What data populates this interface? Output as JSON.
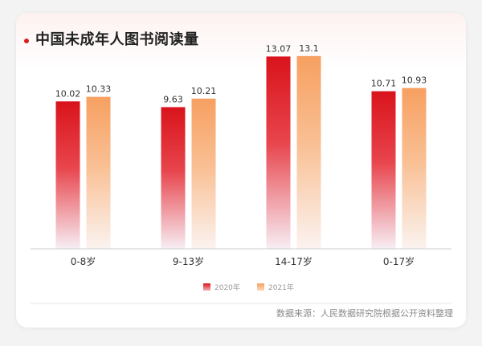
{
  "chart_data": {
    "type": "bar",
    "title": "中国未成年人图书阅读量",
    "categories": [
      "0-8岁",
      "9-13岁",
      "14-17岁",
      "0-17岁"
    ],
    "series": [
      {
        "name": "2020年",
        "values": [
          10.02,
          9.63,
          13.07,
          10.71
        ],
        "value_labels": [
          "10.02",
          "9.63",
          "13.07",
          "10.71"
        ],
        "color": "#d9131b"
      },
      {
        "name": "2021年",
        "values": [
          10.33,
          10.21,
          13.1,
          10.93
        ],
        "value_labels": [
          "10.33",
          "10.21",
          "13.1",
          "10.93"
        ],
        "color": "#f7a061"
      }
    ],
    "ylim": [
      0,
      15
    ],
    "grid": false,
    "legend": "bottom-center",
    "source": "数据来源：人民数据研究院根据公开资料整理"
  }
}
